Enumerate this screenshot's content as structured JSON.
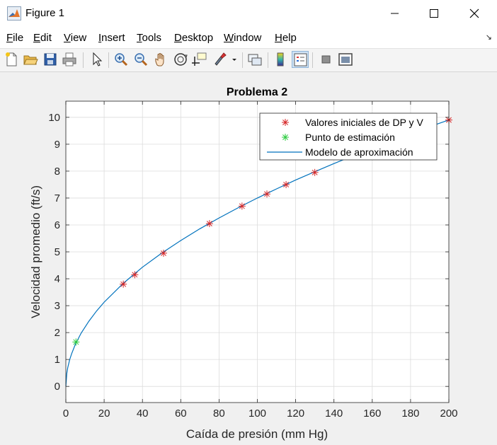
{
  "window": {
    "title": "Figure 1",
    "icon": "matlab-icon"
  },
  "menu": [
    {
      "pre": "",
      "mn": "F",
      "rest": "ile"
    },
    {
      "pre": "",
      "mn": "E",
      "rest": "dit"
    },
    {
      "pre": "",
      "mn": "V",
      "rest": "iew"
    },
    {
      "pre": "",
      "mn": "I",
      "rest": "nsert"
    },
    {
      "pre": "",
      "mn": "T",
      "rest": "ools"
    },
    {
      "pre": "",
      "mn": "D",
      "rest": "esktop"
    },
    {
      "pre": "",
      "mn": "W",
      "rest": "indow"
    },
    {
      "pre": "",
      "mn": "H",
      "rest": "elp"
    }
  ],
  "toolbar": {
    "icons": [
      "new-figure-icon",
      "open-file-icon",
      "save-icon",
      "print-icon",
      "select-arrow-icon",
      "zoom-in-icon",
      "zoom-out-icon",
      "pan-hand-icon",
      "rotate-3d-icon",
      "data-cursor-icon",
      "brush-icon",
      "colorbar-icon",
      "legend-icon",
      "hide-plot-tools-icon",
      "show-plot-tools-icon"
    ]
  },
  "colors": {
    "marker": "#d62728",
    "estimate_marker": "#2ecc40",
    "curve": "#0072bd"
  },
  "chart_data": {
    "type": "line",
    "title": "Problema 2",
    "xlabel": "Caída de presión (mm Hg)",
    "ylabel": "Velocidad promedio (ft/s)",
    "xlim": [
      0,
      200
    ],
    "ylim": [
      -0.6,
      10.6
    ],
    "xticks": [
      0,
      20,
      40,
      60,
      80,
      100,
      120,
      140,
      160,
      180,
      200
    ],
    "yticks": [
      0,
      1,
      2,
      3,
      4,
      5,
      6,
      7,
      8,
      9,
      10
    ],
    "grid": true,
    "legend_position": "top-right",
    "series": [
      {
        "name": "Valores iniciales de DP y V",
        "style": "markers",
        "marker": "asterisk",
        "x": [
          30,
          36,
          51,
          75,
          92,
          105,
          115,
          130,
          200
        ],
        "y": [
          3.8,
          4.15,
          4.95,
          6.05,
          6.7,
          7.15,
          7.5,
          7.95,
          9.9
        ]
      },
      {
        "name": "Punto de estimación",
        "style": "markers",
        "marker": "asterisk",
        "x": [
          5.3
        ],
        "y": [
          1.65
        ]
      },
      {
        "name": "Modelo de aproximación",
        "style": "line",
        "model": "y = 0.7*x^0.5",
        "x": [
          0,
          0.5,
          1,
          2,
          3,
          5,
          8,
          12,
          16,
          20,
          30,
          40,
          50,
          60,
          70,
          80,
          90,
          100,
          110,
          120,
          130,
          140,
          150,
          160,
          170,
          180,
          190,
          200
        ],
        "y": [
          0,
          0.49,
          0.7,
          0.99,
          1.21,
          1.57,
          1.98,
          2.42,
          2.8,
          3.13,
          3.83,
          4.43,
          4.95,
          5.42,
          5.86,
          6.26,
          6.64,
          7.0,
          7.34,
          7.67,
          7.98,
          8.28,
          8.57,
          8.85,
          9.13,
          9.39,
          9.65,
          9.9
        ]
      }
    ]
  }
}
